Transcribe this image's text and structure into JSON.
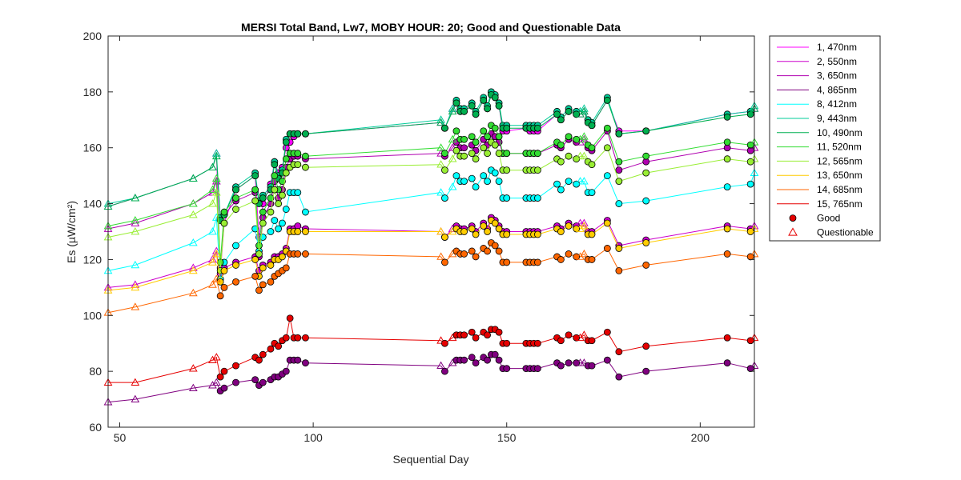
{
  "chart_data": {
    "type": "line",
    "title": "MERSI Total Band,  Lw7, MOBY HOUR: 20;  Good and Questionable Data",
    "xlabel": "Sequential Day",
    "ylabel": "Es (µW/cm²)",
    "xlim": [
      47,
      214
    ],
    "ylim": [
      60,
      200
    ],
    "xticks": [
      50,
      100,
      150,
      200
    ],
    "yticks": [
      60,
      80,
      100,
      120,
      140,
      160,
      180,
      200
    ],
    "grid": false,
    "legend_position": "outside-right",
    "x": [
      47,
      54,
      69,
      74,
      75,
      76,
      77,
      80,
      85,
      86,
      87,
      89,
      90,
      91,
      92,
      93,
      94,
      95,
      96,
      98,
      133,
      134,
      136,
      137,
      138,
      139,
      141,
      142,
      144,
      145,
      146,
      147,
      148,
      149,
      150,
      155,
      156,
      157,
      158,
      163,
      164,
      166,
      168,
      169,
      170,
      171,
      172,
      176,
      179,
      186,
      207,
      213,
      214
    ],
    "series": [
      {
        "name": "1, 470nm",
        "color": "#ff00ff",
        "values": [
          139,
          142,
          149,
          153,
          158,
          115,
          133,
          145,
          150,
          128,
          140,
          147,
          155,
          151,
          153,
          160,
          162,
          164,
          165,
          165,
          169,
          167,
          174,
          176,
          173,
          173,
          175,
          172,
          177,
          174,
          180,
          178,
          175,
          166,
          166,
          167,
          166,
          166,
          166,
          172,
          170,
          173,
          172,
          172,
          173,
          170,
          168,
          177,
          166,
          166,
          172,
          173,
          174
        ]
      },
      {
        "name": "2, 550nm",
        "color": "#cc00cc",
        "values": [
          110,
          111,
          117,
          120,
          123,
          113,
          117,
          119,
          121,
          116,
          118,
          119,
          121,
          121,
          122,
          124,
          131,
          131,
          132,
          131,
          130,
          128,
          131,
          132,
          131,
          131,
          132,
          130,
          133,
          131,
          135,
          134,
          132,
          130,
          130,
          130,
          130,
          130,
          130,
          132,
          131,
          133,
          132,
          133,
          133,
          130,
          130,
          134,
          125,
          127,
          132,
          131,
          132
        ]
      },
      {
        "name": "3, 650nm",
        "color": "#b000b0",
        "values": [
          131,
          133,
          140,
          144,
          148,
          117,
          136,
          141,
          144,
          121,
          135,
          140,
          148,
          142,
          145,
          153,
          156,
          157,
          157,
          156,
          158,
          157,
          160,
          162,
          160,
          160,
          161,
          159,
          163,
          161,
          165,
          164,
          162,
          158,
          158,
          158,
          158,
          158,
          158,
          161,
          160,
          163,
          162,
          162,
          163,
          160,
          159,
          166,
          152,
          155,
          160,
          159,
          160
        ]
      },
      {
        "name": "4, 865nm",
        "color": "#800080",
        "values": [
          69,
          70,
          74,
          75,
          76,
          73,
          74,
          76,
          77,
          75,
          76,
          77,
          78,
          78,
          79,
          80,
          84,
          84,
          84,
          83,
          82,
          80,
          83,
          84,
          84,
          84,
          85,
          83,
          85,
          84,
          86,
          86,
          84,
          81,
          81,
          81,
          81,
          81,
          81,
          83,
          82,
          83,
          83,
          83,
          83,
          82,
          82,
          84,
          78,
          80,
          83,
          81,
          82
        ]
      },
      {
        "name": "8, 412nm",
        "color": "#00ffff",
        "values": [
          116,
          118,
          126,
          130,
          135,
          113,
          119,
          125,
          131,
          123,
          128,
          130,
          134,
          131,
          133,
          138,
          144,
          144,
          144,
          137,
          144,
          142,
          146,
          150,
          148,
          148,
          149,
          146,
          150,
          148,
          152,
          151,
          148,
          142,
          142,
          142,
          142,
          142,
          142,
          147,
          145,
          148,
          147,
          148,
          148,
          144,
          144,
          150,
          140,
          141,
          146,
          147,
          151
        ]
      },
      {
        "name": "9, 443nm",
        "color": "#00cc99",
        "values": [
          140,
          142,
          149,
          153,
          158,
          135,
          136,
          146,
          151,
          141,
          143,
          146,
          155,
          150,
          152,
          163,
          165,
          165,
          165,
          165,
          170,
          167,
          174,
          177,
          174,
          174,
          176,
          173,
          178,
          175,
          180,
          179,
          176,
          168,
          168,
          168,
          168,
          168,
          168,
          173,
          171,
          174,
          173,
          173,
          174,
          170,
          169,
          178,
          165,
          166,
          172,
          173,
          175
        ]
      },
      {
        "name": "10, 490nm",
        "color": "#00b050",
        "values": [
          139,
          142,
          149,
          153,
          157,
          134,
          136,
          145,
          150,
          140,
          142,
          145,
          154,
          149,
          151,
          162,
          165,
          165,
          165,
          165,
          169,
          167,
          173,
          176,
          173,
          173,
          175,
          172,
          177,
          174,
          179,
          178,
          175,
          167,
          167,
          167,
          167,
          167,
          167,
          172,
          170,
          173,
          172,
          172,
          173,
          169,
          168,
          177,
          165,
          166,
          171,
          172,
          174
        ]
      },
      {
        "name": "11, 520nm",
        "color": "#33dd33",
        "values": [
          132,
          134,
          140,
          145,
          149,
          119,
          137,
          142,
          145,
          125,
          137,
          142,
          150,
          145,
          148,
          156,
          158,
          158,
          158,
          157,
          160,
          158,
          163,
          166,
          163,
          163,
          164,
          162,
          166,
          164,
          168,
          167,
          164,
          158,
          158,
          158,
          158,
          158,
          158,
          162,
          161,
          164,
          163,
          163,
          164,
          161,
          160,
          167,
          155,
          157,
          162,
          161,
          162
        ]
      },
      {
        "name": "12, 565nm",
        "color": "#99ee33",
        "values": [
          128,
          130,
          136,
          140,
          144,
          116,
          133,
          138,
          141,
          122,
          133,
          137,
          145,
          140,
          143,
          151,
          153,
          154,
          154,
          153,
          154,
          152,
          156,
          159,
          157,
          157,
          158,
          156,
          160,
          158,
          162,
          161,
          158,
          152,
          152,
          152,
          152,
          152,
          152,
          156,
          155,
          157,
          156,
          157,
          157,
          155,
          154,
          160,
          148,
          151,
          156,
          155,
          156
        ]
      },
      {
        "name": "13, 650nm",
        "color": "#ffcc00",
        "values": [
          109,
          110,
          116,
          119,
          122,
          112,
          116,
          118,
          120,
          114,
          117,
          118,
          120,
          120,
          121,
          123,
          130,
          130,
          130,
          130,
          130,
          128,
          130,
          131,
          130,
          130,
          131,
          129,
          132,
          130,
          134,
          133,
          131,
          129,
          129,
          129,
          129,
          129,
          129,
          131,
          130,
          132,
          131,
          131,
          132,
          129,
          129,
          133,
          124,
          126,
          131,
          130,
          131
        ]
      },
      {
        "name": "14, 685nm",
        "color": "#ff6600",
        "values": [
          101,
          103,
          108,
          111,
          113,
          107,
          110,
          112,
          114,
          109,
          111,
          112,
          114,
          115,
          116,
          117,
          122,
          122,
          122,
          122,
          121,
          119,
          122,
          123,
          122,
          122,
          123,
          121,
          124,
          123,
          126,
          125,
          123,
          119,
          119,
          119,
          119,
          119,
          119,
          121,
          120,
          122,
          121,
          121,
          122,
          120,
          120,
          124,
          116,
          118,
          122,
          121,
          122
        ]
      },
      {
        "name": "15, 765nm",
        "color": "#e60000",
        "values": [
          76,
          76,
          81,
          84,
          85,
          78,
          80,
          82,
          85,
          84,
          86,
          88,
          90,
          89,
          91,
          92,
          99,
          92,
          92,
          92,
          91,
          90,
          92,
          93,
          93,
          93,
          94,
          92,
          94,
          93,
          95,
          95,
          94,
          90,
          90,
          90,
          90,
          90,
          90,
          92,
          91,
          93,
          92,
          92,
          93,
          91,
          91,
          94,
          87,
          89,
          92,
          91,
          92
        ]
      }
    ],
    "markers": {
      "good_label": "Good",
      "questionable_label": "Questionable",
      "questionable_x": [
        47,
        54,
        69,
        74,
        75,
        133,
        136,
        169,
        170,
        214
      ]
    }
  }
}
